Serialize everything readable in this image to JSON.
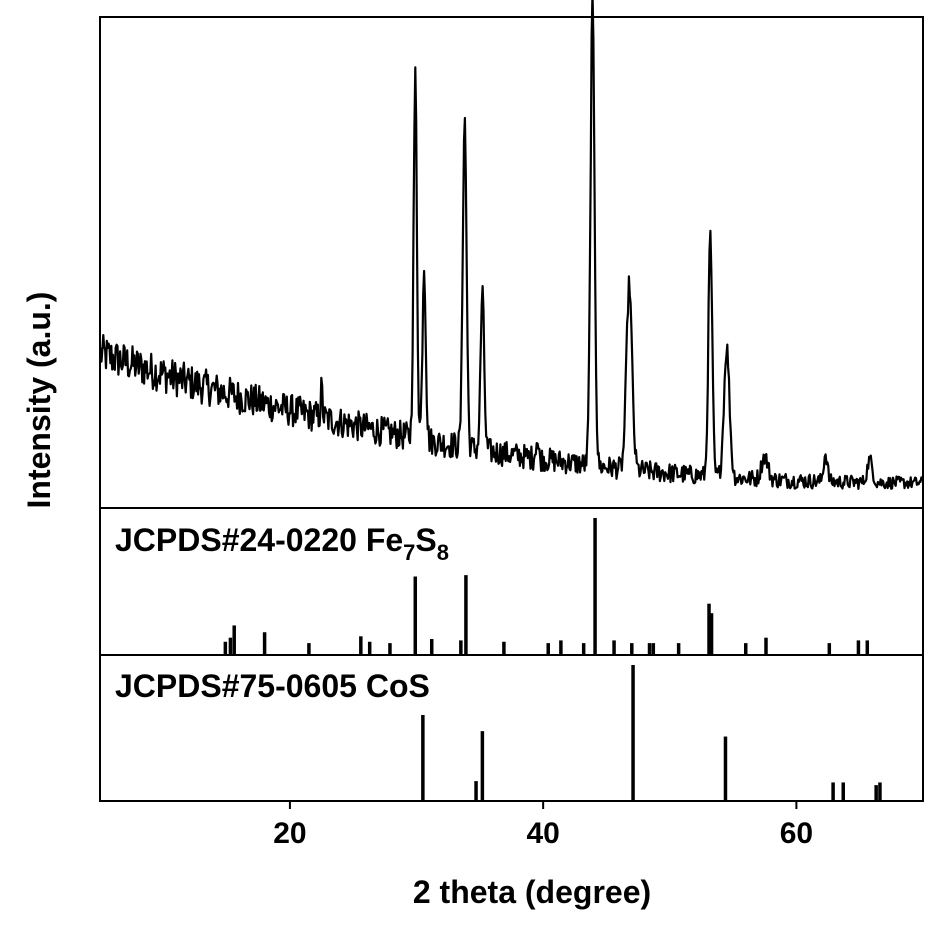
{
  "chart_data": {
    "type": "line",
    "xlabel": "2 theta (degree)",
    "ylabel": "Intensity (a.u.)",
    "xlim": [
      5,
      70
    ],
    "xticks": [
      20,
      40,
      60
    ],
    "xtick_labels": [
      "20",
      "40",
      "60"
    ],
    "grid": false,
    "panels": [
      {
        "id": "measured",
        "type": "line",
        "description_values": "XRD pattern, relative intensity 0-1",
        "ylim": [
          0,
          1
        ],
        "background": {
          "start": 0.3,
          "end": 0.02
        },
        "peaks": [
          {
            "x": 29.9,
            "y": 0.78,
            "w": 0.13
          },
          {
            "x": 30.6,
            "y": 0.38,
            "w": 0.13
          },
          {
            "x": 33.8,
            "y": 0.71,
            "w": 0.15
          },
          {
            "x": 35.2,
            "y": 0.34,
            "w": 0.14
          },
          {
            "x": 43.9,
            "y": 1.0,
            "w": 0.16
          },
          {
            "x": 46.8,
            "y": 0.4,
            "w": 0.22
          },
          {
            "x": 53.2,
            "y": 0.52,
            "w": 0.15
          },
          {
            "x": 54.5,
            "y": 0.28,
            "w": 0.22
          },
          {
            "x": 57.5,
            "y": 0.05,
            "w": 0.25
          },
          {
            "x": 62.3,
            "y": 0.06,
            "w": 0.15
          },
          {
            "x": 65.8,
            "y": 0.05,
            "w": 0.2
          },
          {
            "x": 39.5,
            "y": 0.04,
            "w": 0.1
          },
          {
            "x": 22.5,
            "y": 0.06,
            "w": 0.08
          }
        ]
      },
      {
        "id": "fe7s8",
        "type": "bar",
        "label_main": "JCPDS#24-0220 Fe",
        "label_sub1": "7",
        "label_mid": "S",
        "label_sub2": "8",
        "ylim": [
          0,
          1
        ],
        "x": [
          14.9,
          15.3,
          15.6,
          18.0,
          21.5,
          25.6,
          26.3,
          27.9,
          29.9,
          31.2,
          33.5,
          33.9,
          36.9,
          40.4,
          41.4,
          43.2,
          44.1,
          45.6,
          47.0,
          48.4,
          48.7,
          50.7,
          53.1,
          53.3,
          56.0,
          57.6,
          62.6,
          64.9,
          65.6
        ],
        "values": [
          0.09,
          0.12,
          0.21,
          0.16,
          0.08,
          0.13,
          0.09,
          0.08,
          0.57,
          0.11,
          0.1,
          0.58,
          0.09,
          0.08,
          0.1,
          0.08,
          1.0,
          0.1,
          0.08,
          0.08,
          0.08,
          0.08,
          0.37,
          0.3,
          0.08,
          0.12,
          0.08,
          0.1,
          0.1
        ]
      },
      {
        "id": "cos",
        "type": "bar",
        "label": "JCPDS#75-0605 CoS",
        "ylim": [
          0,
          1
        ],
        "x": [
          30.5,
          34.7,
          35.2,
          47.1,
          54.4,
          62.9,
          63.7,
          66.3,
          66.6
        ],
        "values": [
          0.63,
          0.14,
          0.51,
          1.0,
          0.47,
          0.13,
          0.13,
          0.11,
          0.13
        ]
      }
    ]
  }
}
